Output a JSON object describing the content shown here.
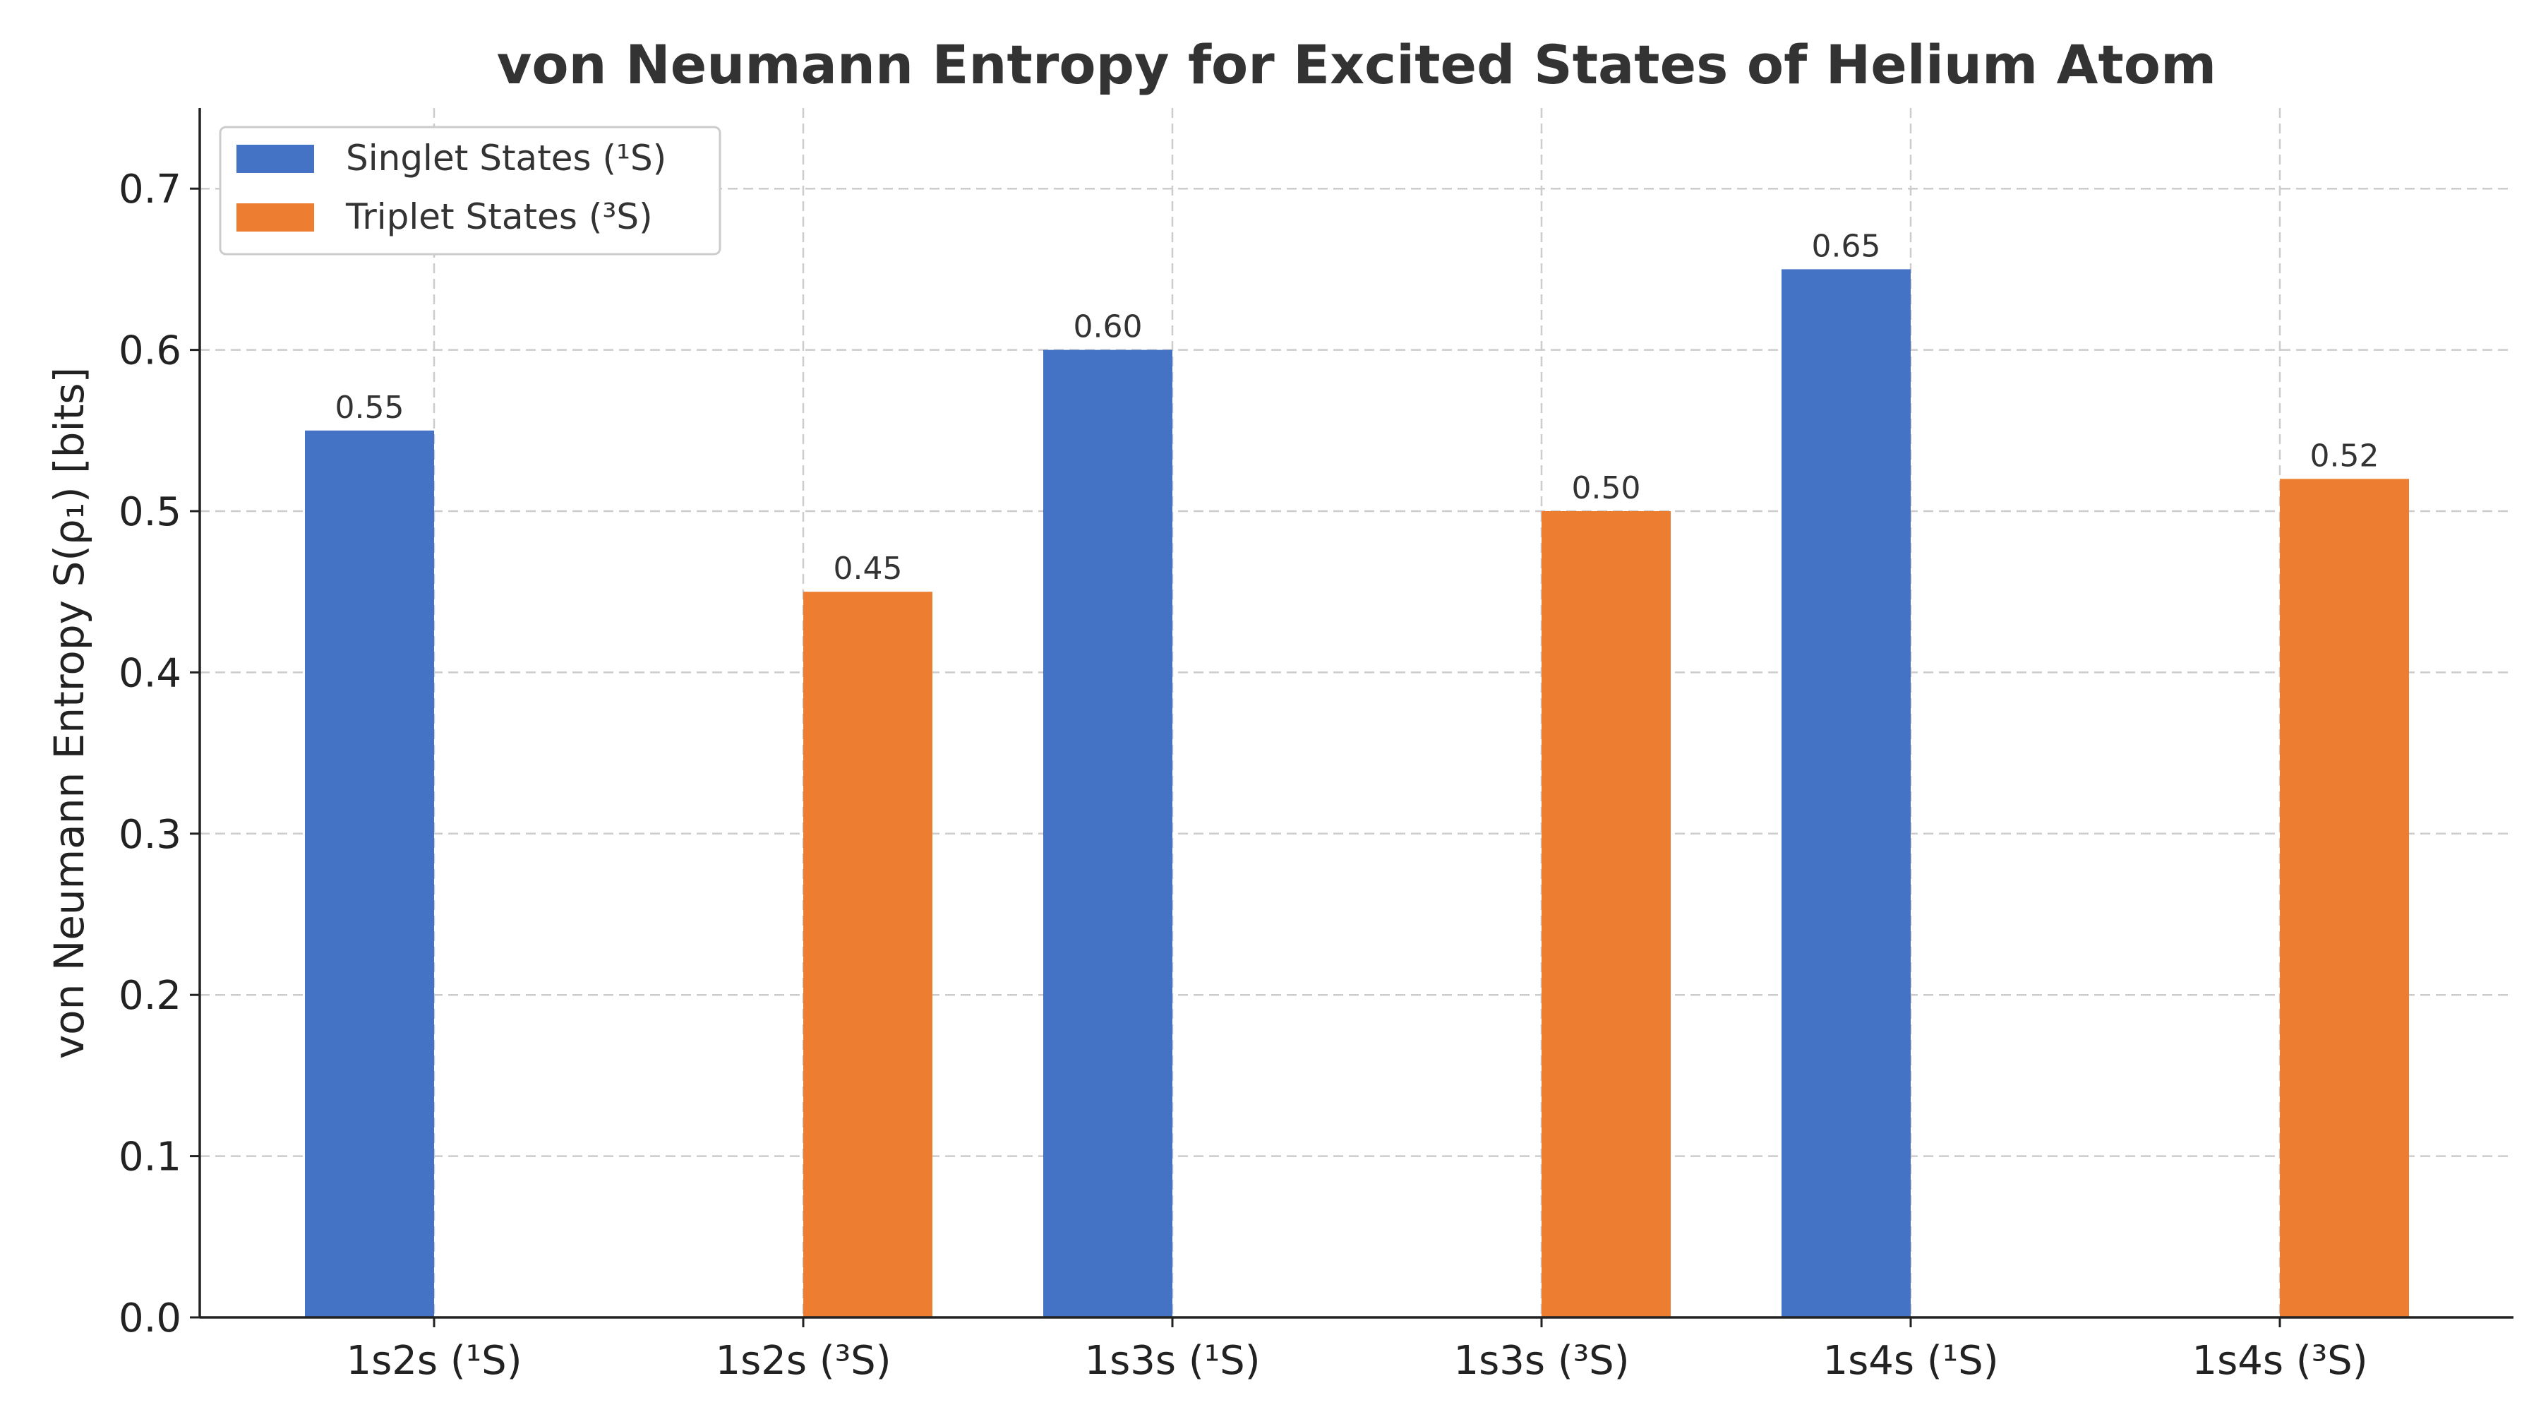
{
  "chart_data": {
    "type": "bar",
    "title": "von Neumann Entropy for Excited States of Helium Atom",
    "xlabel": "",
    "ylabel": "von Neumann Entropy S(ρ₁) [bits]",
    "categories": [
      "1s2s (¹S)",
      "1s2s (³S)",
      "1s3s (¹S)",
      "1s3s (³S)",
      "1s4s (¹S)",
      "1s4s (³S)"
    ],
    "ylim": [
      0,
      0.75
    ],
    "yticks": [
      0.0,
      0.1,
      0.2,
      0.3,
      0.4,
      0.5,
      0.6,
      0.7
    ],
    "ytick_labels": [
      "0.0",
      "0.1",
      "0.2",
      "0.3",
      "0.4",
      "0.5",
      "0.6",
      "0.7"
    ],
    "grid": true,
    "legend_position": "top-left",
    "series": [
      {
        "name": "Singlet States (¹S)",
        "color": "#4472c4",
        "values": [
          0.55,
          null,
          0.6,
          null,
          0.65,
          null
        ],
        "value_labels": [
          "0.55",
          "",
          "0.60",
          "",
          "0.65",
          ""
        ]
      },
      {
        "name": "Triplet States (³S)",
        "color": "#ed7d31",
        "values": [
          null,
          0.45,
          null,
          0.5,
          null,
          0.52
        ],
        "value_labels": [
          "",
          "0.45",
          "",
          "0.50",
          "",
          "0.52"
        ]
      }
    ]
  }
}
